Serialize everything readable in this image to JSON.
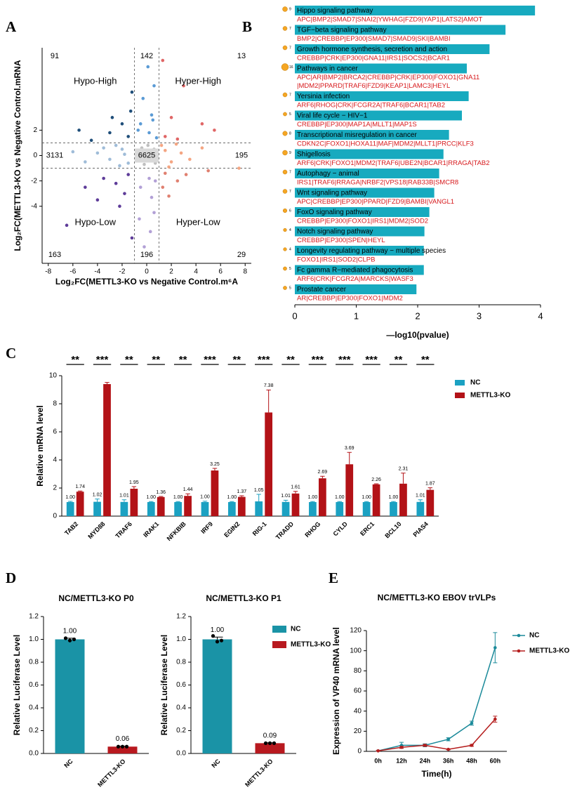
{
  "chart_data": [
    {
      "type": "scatter",
      "panel": "A",
      "xlabel": "Log₂FC(METTL3-KO vs Negative Control.m⁶A",
      "ylabel": "Log₂FC(METTL3-KO vs Negative Control.mRNA",
      "xlim": [
        -8.5,
        8.5
      ],
      "xticks": [
        -8,
        -6,
        -4,
        -2,
        0,
        2,
        4,
        6,
        8
      ],
      "ylim": [
        -8.5,
        8.5
      ],
      "yticks": [
        -4,
        -2,
        0,
        2
      ],
      "xthresholds": [
        -1,
        1
      ],
      "ythresholds": [
        -1,
        1
      ],
      "counts": [
        [
          91,
          142,
          13
        ],
        [
          3131,
          6625,
          195
        ],
        [
          163,
          196,
          29
        ]
      ],
      "quadrant_labels": [
        "Hypo-High",
        "Hyper-High",
        "Hypo-Low",
        "Hyper-Low"
      ],
      "region_colors": [
        [
          "#1f4e79",
          "#5b9bd5",
          "#e06666"
        ],
        [
          "#9fbcd8",
          "#bfbfbf",
          "#f4a582"
        ],
        [
          "#5e3c99",
          "#b2a0d6",
          "#e08070"
        ]
      ],
      "x": [
        -0.5,
        0.3,
        0.6,
        -0.2,
        0.1,
        -0.8,
        0.7,
        -0.4,
        -2,
        -3,
        -1.5,
        -4,
        -2.5,
        -5,
        -1.8,
        -3.5,
        -6,
        -2.2,
        1.5,
        2,
        1.2,
        2.8,
        3.5,
        1.8,
        4.5,
        2.4,
        0.2,
        -0.5,
        0.4,
        0.8,
        -0.3,
        0.6,
        0.1,
        -0.7,
        0.5,
        -1.5,
        -2,
        -3,
        -1.3,
        -4.5,
        -2.8,
        -1.2,
        -5.5,
        1.5,
        2,
        3,
        1.3,
        4.5,
        5.5,
        2.5,
        0.2,
        -0.5,
        0.4,
        0.6,
        0.3,
        -0.2,
        0.7,
        -0.6,
        -1.5,
        -2.5,
        -3.5,
        -1.8,
        -5,
        -6.5,
        -2.2,
        -1.2,
        -4,
        1.5,
        2.5,
        1.8,
        3.2,
        5,
        7.5,
        1.3
      ],
      "values": [
        0.3,
        -0.4,
        0.5,
        -0.7,
        0.8,
        -0.2,
        -0.6,
        0.6,
        0.5,
        -0.3,
        -0.6,
        0.2,
        0.8,
        -0.5,
        0.1,
        0.6,
        0.3,
        -0.8,
        0.4,
        -0.5,
        0.8,
        0.2,
        -0.3,
        -0.9,
        0.6,
        0.9,
        1.8,
        2.5,
        3.2,
        1.4,
        4.5,
        5.5,
        7,
        2,
        2.8,
        1.5,
        2.5,
        1.8,
        3.5,
        1.2,
        3,
        5,
        2,
        1.5,
        3,
        5.5,
        7.5,
        2.5,
        2,
        1.3,
        -1.8,
        -2.5,
        -3.3,
        -4.5,
        -6,
        -7.2,
        -2,
        -5,
        -1.5,
        -2.2,
        -1.8,
        -3,
        -2.5,
        -5.5,
        -4,
        -6.5,
        -3.5,
        -1.4,
        -2,
        -3.2,
        -1.5,
        -1.2,
        -1,
        -2.5
      ]
    },
    {
      "type": "hbar",
      "panel": "B",
      "xlabel": "—log10(pvalue)",
      "color": "#17aabf",
      "xlim": [
        0,
        4
      ],
      "xticks": [
        0,
        1,
        2,
        3,
        4
      ],
      "categories": [
        "Hippo signaling pathway",
        "TGF−beta signaling pathway",
        "Growth hormone synthesis, secretion and action",
        "Pathways in cancer",
        "Yersinia infection",
        "Viral life cycle − HIV−1",
        "Transcriptional misregulation in cancer",
        "Shigellosis",
        "Autophagy − animal",
        "Wnt signaling pathway",
        "FoxO signaling pathway",
        "Notch signaling pathway",
        "Longevity regulating pathway − multiple species",
        "Fc gamma R−mediated phagocytosis",
        "Prostate cancer"
      ],
      "values": [
        3.91,
        3.43,
        3.17,
        2.8,
        2.83,
        2.72,
        2.51,
        2.42,
        2.35,
        2.27,
        2.19,
        2.11,
        2.1,
        2.1,
        1.98
      ],
      "gene_counts": [
        9,
        7,
        7,
        16,
        7,
        5,
        8,
        9,
        7,
        7,
        6,
        4,
        4,
        5,
        5
      ],
      "gene_lists": [
        [
          "APC|BMP2|SMAD7|SNAI2|YWHAG|FZD9|YAP1|LATS2|AMOT"
        ],
        [
          "BMP2|CREBBP|EP300|SMAD7|SMAD9|SKI|BAMBI"
        ],
        [
          "CREBBP|CRK|EP300|GNA11|IRS1|SOCS2|BCAR1"
        ],
        [
          "APC|AR|BMP2|BRCA2|CREBBP|CRK|EP300|FOXO1|GNA11",
          "|MDM2|PPARD|TRAF6|FZD9|KEAP1|LAMC3|HEYL"
        ],
        [
          "ARF6|RHOG|CRK|FCGR2A|TRAF6|BCAR1|TAB2"
        ],
        [
          "CREBBP|EP300|MAP1A|MLLT1|MAP1S"
        ],
        [
          "CDKN2C|FOXO1|HOXA11|MAF|MDM2|MLLT1|PRCC|KLF3"
        ],
        [
          "ARF6|CRK|FOXO1|MDM2|TRAF6|UBE2N|BCAR1|RRAGA|TAB2"
        ],
        [
          "IRS1|TRAF6|RRAGA|NRBF2|VPS18|RAB33B|SMCR8"
        ],
        [
          "APC|CREBBP|EP300|PPARD|FZD9|BAMBI|VANGL1"
        ],
        [
          "CREBBP|EP300|FOXO1|IRS1|MDM2|SOD2"
        ],
        [
          "CREBBP|EP300|SPEN|HEYL"
        ],
        [
          "FOXO1|IRS1|SOD2|CLPB"
        ],
        [
          "ARF6|CRK|FCGR2A|MARCKS|WASF3"
        ],
        [
          "AR|CREBBP|EP300|FOXO1|MDM2"
        ]
      ]
    },
    {
      "type": "bar",
      "panel": "C",
      "ylabel": "Relative mRNA level",
      "ylim": [
        0,
        10
      ],
      "yticks": [
        0,
        2,
        4,
        6,
        8,
        10
      ],
      "categories": [
        "TAB2",
        "MYD88",
        "TRAF6",
        "IRAK1",
        "NFKBIB",
        "IRF9",
        "EGIN2",
        "RIG-1",
        "TRADD",
        "RHOG",
        "CYLD",
        "ERC1",
        "BCL10",
        "PIAS4"
      ],
      "significance": [
        "**",
        "***",
        "**",
        "**",
        "**",
        "***",
        "**",
        "***",
        "**",
        "***",
        "***",
        "***",
        "**",
        "**"
      ],
      "series": [
        {
          "name": "NC",
          "color": "#1ba1c2",
          "values": [
            1.0,
            1.02,
            1.01,
            1.0,
            1.0,
            1.0,
            1.0,
            1.05,
            1.01,
            1.0,
            1.0,
            1.0,
            1.0,
            1.01
          ],
          "errors": [
            0.05,
            0.2,
            0.15,
            0.04,
            0.04,
            0.06,
            0.04,
            0.5,
            0.12,
            0.04,
            0.04,
            0.04,
            0.04,
            0.15
          ],
          "value_labels": [
            "1.00",
            "1.02",
            "1.01",
            "1.00",
            "1.00",
            "1.00",
            "1.00",
            "1.05",
            "1.01",
            "1.00",
            "1.00",
            "1.00",
            "1.00",
            "1.01"
          ]
        },
        {
          "name": "METTL3-KO",
          "color": "#b31217",
          "values": [
            1.74,
            9.4,
            1.95,
            1.36,
            1.44,
            3.25,
            1.37,
            7.38,
            1.61,
            2.69,
            3.69,
            2.26,
            2.31,
            1.87
          ],
          "errors": [
            0.05,
            0.12,
            0.15,
            0.04,
            0.15,
            0.15,
            0.08,
            1.6,
            0.15,
            0.15,
            0.85,
            0.04,
            0.75,
            0.15
          ],
          "value_labels": [
            "1.74",
            null,
            "1.95",
            "1.36",
            "1.44",
            "3.25",
            "1.37",
            "7.38",
            "1.61",
            "2.69",
            "3.69",
            "2.26",
            "2.31",
            "1.87"
          ]
        }
      ]
    },
    {
      "type": "bar",
      "panel": "D",
      "title": "NC/METTL3-KO P0",
      "ylabel": "Relative Luciferase Level",
      "ylim": [
        0,
        1.2
      ],
      "yticks": [
        {
          "value": 0,
          "label": "0.0"
        },
        0.2,
        0.4,
        0.6,
        0.8,
        {
          "value": 1,
          "label": "1.0"
        },
        1.2
      ],
      "categories": [
        "NC",
        "METTL3-KO"
      ],
      "colors": [
        "#1a93a6",
        "#b8191f"
      ],
      "values": [
        1.0,
        0.06
      ],
      "errors": [
        0.01,
        0.004
      ],
      "value_labels": [
        "1.00",
        "0.06"
      ],
      "points": [
        [
          1.01,
          0.99,
          1.0
        ],
        [
          0.06,
          0.06,
          0.06
        ]
      ]
    },
    {
      "type": "bar",
      "title": "NC/METTL3-KO P1",
      "ylabel": "Relative Luciferase Level",
      "legend": true,
      "ylim": [
        0,
        1.2
      ],
      "yticks": [
        {
          "value": 0,
          "label": "0.0"
        },
        0.2,
        0.4,
        0.6,
        0.8,
        {
          "value": 1,
          "label": "1.0"
        },
        1.2
      ],
      "categories": [
        "NC",
        "METTL3-KO"
      ],
      "colors": [
        "#1a93a6",
        "#b8191f"
      ],
      "values": [
        1.0,
        0.09
      ],
      "errors": [
        0.02,
        0.004
      ],
      "value_labels": [
        "1.00",
        "0.09"
      ],
      "points": [
        [
          1.03,
          0.98,
          0.99
        ],
        [
          0.09,
          0.09,
          0.09
        ]
      ]
    },
    {
      "type": "line",
      "panel": "E",
      "title": "NC/METTL3-KO EBOV trVLPs",
      "xlabel": "Time(h)",
      "ylabel": "Expression of VP40 mRNA level",
      "ylim": [
        0,
        120
      ],
      "yticks": [
        0,
        20,
        40,
        60,
        80,
        100,
        120
      ],
      "categories": [
        "0h",
        "12h",
        "24h",
        "36h",
        "48h",
        "60h"
      ],
      "series": [
        {
          "name": "NC",
          "color": "#1b8a9a",
          "values": [
            0.5,
            6,
            6,
            12,
            28,
            103
          ],
          "errors": [
            0.5,
            3,
            1.5,
            1.5,
            2,
            15
          ]
        },
        {
          "name": "METTL3-KO",
          "color": "#b51e1e",
          "values": [
            0.5,
            4,
            6,
            2,
            6,
            32
          ],
          "errors": [
            0.5,
            1,
            1,
            0.5,
            1,
            3
          ]
        }
      ]
    }
  ]
}
